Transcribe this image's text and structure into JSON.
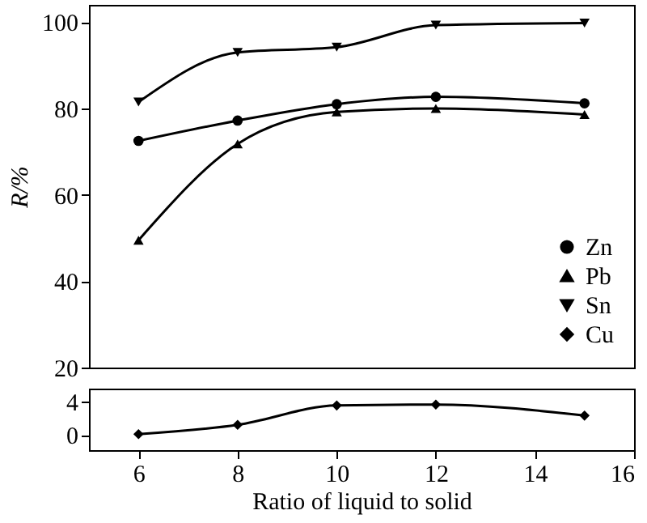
{
  "chart_data": [
    {
      "type": "line",
      "ylabel": "R/%",
      "x": [
        6,
        8,
        10,
        12,
        15
      ],
      "xlim": [
        5,
        16
      ],
      "xticks": [
        6,
        8,
        10,
        12,
        14,
        16
      ],
      "ylim": [
        20,
        104
      ],
      "yticks": [
        20,
        40,
        60,
        80,
        100
      ],
      "tick_labels": "y",
      "legend": "bottom right",
      "grid": false,
      "line_style": "solid",
      "series": [
        {
          "name": "Zn",
          "color": "#000000",
          "marker": "circle",
          "values": [
            72.5,
            77.2,
            81,
            82.7,
            81.2
          ]
        },
        {
          "name": "Pb",
          "color": "#000000",
          "marker": "triangle",
          "values": [
            49.5,
            71.8,
            79.2,
            80,
            78.6
          ]
        },
        {
          "name": "Sn",
          "color": "#000000",
          "marker": "triangle-down",
          "values": [
            81.5,
            93,
            94.2,
            99.3,
            99.8
          ]
        }
      ]
    },
    {
      "type": "line",
      "xlabel": "Ratio of liquid to solid",
      "x": [
        6,
        8,
        10,
        12,
        15
      ],
      "xlim": [
        5,
        16
      ],
      "xticks": [
        6,
        8,
        10,
        12,
        14,
        16
      ],
      "ylim": [
        -1.8,
        5.5
      ],
      "yticks": [
        0,
        4
      ],
      "legend": false,
      "grid": false,
      "line_style": "solid",
      "series": [
        {
          "name": "Cu",
          "color": "#000000",
          "marker": "diamond",
          "values": [
            0.1,
            1.2,
            3.5,
            3.6,
            2.3
          ]
        }
      ]
    }
  ]
}
